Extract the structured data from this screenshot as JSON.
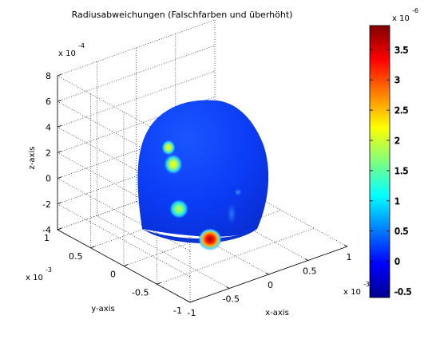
{
  "chart_data": {
    "type": "surface3d",
    "title": "Radiusabweichungen (Falschfarben und überhöht)",
    "xlabel": "x-axis",
    "ylabel": "y-axis",
    "zlabel": "z-axis",
    "x_scale": {
      "prefix": "x 10",
      "exponent": "-3"
    },
    "y_scale": {
      "prefix": "x 10",
      "exponent": "-3"
    },
    "z_scale": {
      "prefix": "x 10",
      "exponent": "-4"
    },
    "xlim": [
      -1,
      1
    ],
    "ylim": [
      -1,
      1
    ],
    "zlim": [
      -4,
      8
    ],
    "x_ticks": [
      -1,
      -0.5,
      0,
      0.5,
      1
    ],
    "x_tick_labels": [
      "-1",
      "-0.5",
      "0",
      "0.5",
      "1"
    ],
    "y_ticks": [
      -1,
      -0.5,
      0,
      0.5,
      1
    ],
    "y_tick_labels": [
      "-1",
      "-0.5",
      "0",
      "0.5",
      "1"
    ],
    "z_ticks": [
      -4,
      -2,
      0,
      2,
      4,
      6,
      8
    ],
    "z_tick_labels": [
      "-4",
      "-2",
      "0",
      "2",
      "4",
      "6",
      "8"
    ],
    "grid": true,
    "surface": {
      "shape": "dome",
      "base_z": -4,
      "top_z": 6.3,
      "radius": 0.88,
      "base_color": "#0a3dff"
    },
    "hotspots": [
      {
        "label": "upper-small",
        "value": 1.6
      },
      {
        "label": "upper",
        "value": 1.9
      },
      {
        "label": "middle",
        "value": 1.7
      },
      {
        "label": "bottom",
        "value": 3.8
      },
      {
        "label": "faint",
        "value": 0.3
      }
    ],
    "colorbar": {
      "scale": {
        "prefix": "x 10",
        "exponent": "-6"
      },
      "min": -0.6,
      "max": 3.9,
      "ticks": [
        -0.5,
        0,
        0.5,
        1,
        1.5,
        2,
        2.5,
        3,
        3.5
      ],
      "tick_labels": [
        "-0.5",
        "0",
        "0.5",
        "1",
        "1.5",
        "2",
        "2.5",
        "3",
        "3.5"
      ],
      "colormap": "jet"
    }
  }
}
